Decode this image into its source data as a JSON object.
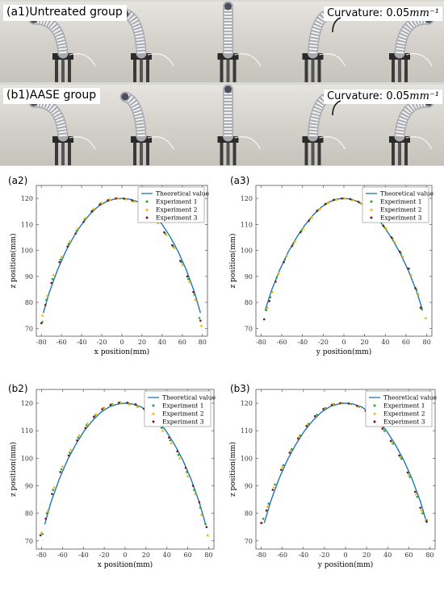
{
  "photos": {
    "rows": [
      {
        "label": "(a1)Untreated group",
        "curvature_label": "Curvature: 0.05",
        "curvature_unit": "mm⁻¹",
        "bends": [
          -0.9,
          -0.5,
          0.0,
          0.5,
          0.9
        ]
      },
      {
        "label": "(b1)AASE group",
        "curvature_label": "Curvature: 0.05",
        "curvature_unit": "mm⁻¹",
        "bends": [
          -0.9,
          -0.5,
          0.0,
          0.5,
          0.9
        ]
      }
    ]
  },
  "colors": {
    "theory": "#1f77b4",
    "exp1": "#2ca02c",
    "exp2": "#f5b400",
    "exp3": "#7a1320"
  },
  "chart_data": [
    {
      "tag": "(a2)",
      "type": "scatter",
      "xlabel": "x position(mm)",
      "ylabel": "z position(mm)",
      "xlim": [
        -85,
        85
      ],
      "ylim": [
        67,
        125
      ],
      "xticks": [
        -80,
        -60,
        -40,
        -20,
        0,
        20,
        40,
        60,
        80
      ],
      "yticks": [
        70,
        80,
        90,
        100,
        110,
        120
      ],
      "theory": {
        "name": "Theoretical value",
        "x": [
          -78,
          -72,
          -64,
          -56,
          -48,
          -40,
          -32,
          -24,
          -16,
          -8,
          0,
          8,
          16,
          24,
          32,
          40,
          48,
          56,
          64,
          72,
          78
        ],
        "y": [
          76,
          84,
          92.5,
          99.5,
          105.2,
          110,
          113.8,
          116.8,
          118.7,
          119.7,
          120,
          119.7,
          118.7,
          116.8,
          113.8,
          110,
          105.2,
          99.5,
          92.5,
          84,
          76
        ]
      },
      "series": [
        {
          "name": "Experiment 1",
          "marker": "dot",
          "x": [
            -79,
            -75,
            -69,
            -61,
            -53,
            -45,
            -37,
            -29,
            -21,
            -13,
            -5,
            3,
            11,
            19,
            27,
            35,
            43,
            51,
            59,
            66,
            72,
            77
          ],
          "y": [
            72.5,
            81,
            89,
            96.5,
            102.5,
            107.5,
            112,
            115.5,
            118,
            119.4,
            120,
            119.8,
            119,
            117.2,
            114.5,
            111,
            106.5,
            101.5,
            95.5,
            89,
            83,
            74
          ]
        },
        {
          "name": "Experiment 2",
          "marker": "triangle",
          "x": [
            -79,
            -74,
            -68,
            -60,
            -52,
            -44,
            -36,
            -28,
            -20,
            -12,
            -4,
            4,
            12,
            20,
            28,
            36,
            44,
            52,
            60,
            67,
            73,
            79
          ],
          "y": [
            75,
            82.5,
            90.5,
            97.5,
            103.5,
            108.5,
            112.5,
            116,
            118.3,
            119.6,
            120,
            119.7,
            118.8,
            117,
            114,
            110.5,
            106,
            101,
            94.5,
            88,
            81,
            71
          ]
        },
        {
          "name": "Experiment 3",
          "marker": "dot",
          "x": [
            -80,
            -76,
            -70,
            -62,
            -54,
            -46,
            -38,
            -30,
            -22,
            -14,
            -6,
            2,
            10,
            18,
            26,
            34,
            42,
            50,
            58,
            65,
            71,
            78
          ],
          "y": [
            72,
            79,
            87.5,
            95.5,
            101.5,
            106.5,
            111,
            115,
            117.7,
            119.3,
            120,
            120,
            119.3,
            117.7,
            115,
            111.5,
            107,
            102,
            96,
            90,
            84,
            73
          ]
        }
      ]
    },
    {
      "tag": "(a3)",
      "type": "scatter",
      "xlabel": "y position(mm)",
      "ylabel": "z position(mm)",
      "xlim": [
        -85,
        85
      ],
      "ylim": [
        67,
        125
      ],
      "xticks": [
        -80,
        -60,
        -40,
        -20,
        0,
        20,
        40,
        60,
        80
      ],
      "yticks": [
        70,
        80,
        90,
        100,
        110,
        120
      ],
      "theory": {
        "name": "Theoretical value",
        "x": [
          -76,
          -70,
          -62,
          -54,
          -46,
          -38,
          -30,
          -22,
          -14,
          -6,
          0,
          6,
          14,
          22,
          30,
          38,
          46,
          54,
          62,
          70,
          76
        ],
        "y": [
          77,
          84.5,
          92.5,
          99.3,
          104.8,
          109.6,
          113.5,
          116.6,
          118.7,
          119.8,
          120,
          119.8,
          118.7,
          116.6,
          113.5,
          109.6,
          104.8,
          99.3,
          92.5,
          84.5,
          77
        ]
      },
      "series": [
        {
          "name": "Experiment 1",
          "marker": "dot",
          "x": [
            -75,
            -71,
            -65,
            -57,
            -49,
            -41,
            -33,
            -25,
            -17,
            -9,
            -1,
            7,
            15,
            23,
            31,
            39,
            47,
            55,
            63,
            70,
            75
          ],
          "y": [
            77,
            82,
            89.5,
            96.5,
            102.5,
            107.5,
            112,
            115.5,
            118,
            119.5,
            120,
            119.6,
            118.4,
            116.2,
            113,
            109,
            104.5,
            99,
            93,
            85,
            77.5
          ]
        },
        {
          "name": "Experiment 2",
          "marker": "triangle",
          "x": [
            -74,
            -69,
            -63,
            -55,
            -47,
            -39,
            -31,
            -23,
            -15,
            -7,
            1,
            9,
            17,
            25,
            33,
            41,
            49,
            57,
            65,
            72,
            79
          ],
          "y": [
            78,
            84,
            91,
            98,
            103.5,
            108.5,
            112.7,
            116,
            118.3,
            119.6,
            120,
            119.4,
            118,
            115.6,
            112.3,
            108.3,
            103.3,
            97.5,
            90.5,
            83,
            74
          ]
        },
        {
          "name": "Experiment 3",
          "marker": "dot",
          "x": [
            -77,
            -72,
            -66,
            -58,
            -50,
            -42,
            -34,
            -26,
            -18,
            -10,
            -2,
            6,
            14,
            22,
            30,
            38,
            46,
            54,
            62,
            69,
            74
          ],
          "y": [
            73.5,
            80.5,
            88,
            95.5,
            101.7,
            107,
            111.3,
            115.2,
            117.8,
            119.4,
            120,
            119.8,
            118.7,
            116.6,
            113.5,
            109.5,
            105,
            99.5,
            93,
            85.5,
            78
          ]
        }
      ]
    },
    {
      "tag": "(b2)",
      "type": "scatter",
      "xlabel": "x position(mm)",
      "ylabel": "z position(mm)",
      "xlim": [
        -85,
        85
      ],
      "ylim": [
        67,
        125
      ],
      "xticks": [
        -80,
        -60,
        -40,
        -20,
        0,
        20,
        40,
        60,
        80
      ],
      "yticks": [
        70,
        80,
        90,
        100,
        110,
        120
      ],
      "theory": {
        "name": "Theoretical value",
        "x": [
          -77,
          -71,
          -63,
          -55,
          -47,
          -39,
          -31,
          -23,
          -15,
          -7,
          0,
          7,
          15,
          23,
          31,
          39,
          47,
          55,
          63,
          71,
          77
        ],
        "y": [
          76,
          84,
          92.5,
          99.5,
          105.2,
          110,
          113.8,
          116.8,
          118.7,
          119.7,
          120,
          119.7,
          118.7,
          116.8,
          113.8,
          110,
          105.2,
          99.5,
          92.5,
          84,
          76
        ]
      },
      "series": [
        {
          "name": "Experiment 1",
          "marker": "dot",
          "x": [
            -79,
            -75,
            -69,
            -61,
            -53,
            -45,
            -37,
            -29,
            -21,
            -13,
            -5,
            3,
            11,
            19,
            27,
            35,
            43,
            51,
            59,
            66,
            72,
            77
          ],
          "y": [
            72.5,
            80,
            88.5,
            96,
            102,
            107.5,
            112,
            115.5,
            118.2,
            119.6,
            120.2,
            120,
            119.2,
            117.4,
            114.6,
            111,
            106.5,
            101.2,
            95,
            88.5,
            82,
            76
          ]
        },
        {
          "name": "Experiment 2",
          "marker": "triangle",
          "x": [
            -80,
            -74,
            -68,
            -60,
            -52,
            -44,
            -36,
            -28,
            -20,
            -12,
            -4,
            4,
            12,
            20,
            28,
            36,
            44,
            52,
            60,
            67,
            73,
            79
          ],
          "y": [
            73,
            81,
            89.5,
            97,
            103,
            108.3,
            112.6,
            116,
            118.4,
            119.8,
            120.2,
            119.6,
            118.6,
            116.8,
            113.8,
            110,
            105.5,
            100,
            93.5,
            87,
            79.5,
            72
          ]
        },
        {
          "name": "Experiment 3",
          "marker": "dot",
          "x": [
            -81,
            -76,
            -70,
            -62,
            -54,
            -46,
            -38,
            -30,
            -22,
            -14,
            -6,
            2,
            10,
            18,
            26,
            34,
            42,
            50,
            58,
            65,
            71,
            78
          ],
          "y": [
            72,
            78,
            87,
            95,
            101,
            106.5,
            111,
            115,
            117.8,
            119.4,
            120.2,
            120.2,
            119.6,
            118,
            115.3,
            111.8,
            107.5,
            102.5,
            96.5,
            90,
            84,
            75
          ]
        }
      ]
    },
    {
      "tag": "(b3)",
      "type": "scatter",
      "xlabel": "y position(mm)",
      "ylabel": "z position(mm)",
      "xlim": [
        -85,
        85
      ],
      "ylim": [
        67,
        125
      ],
      "xticks": [
        -80,
        -60,
        -40,
        -20,
        0,
        20,
        40,
        60,
        80
      ],
      "yticks": [
        70,
        80,
        90,
        100,
        110,
        120
      ],
      "theory": {
        "name": "Theoretical value",
        "x": [
          -77,
          -71,
          -63,
          -55,
          -47,
          -39,
          -31,
          -23,
          -15,
          -7,
          0,
          7,
          15,
          23,
          31,
          39,
          47,
          55,
          63,
          71,
          77
        ],
        "y": [
          76.5,
          84.3,
          92.6,
          99.5,
          105.1,
          109.9,
          113.7,
          116.7,
          118.7,
          119.7,
          120,
          119.7,
          118.7,
          116.7,
          113.7,
          109.9,
          105.1,
          99.5,
          92.6,
          84.3,
          76.5
        ]
      },
      "series": [
        {
          "name": "Experiment 1",
          "marker": "dot",
          "x": [
            -78,
            -73,
            -67,
            -59,
            -51,
            -43,
            -35,
            -27,
            -19,
            -11,
            -3,
            5,
            13,
            21,
            29,
            37,
            45,
            53,
            61,
            68,
            73,
            77
          ],
          "y": [
            78,
            83.5,
            90.5,
            97.5,
            103.3,
            108.3,
            112.5,
            115.8,
            118.2,
            119.6,
            120,
            119.7,
            118.7,
            116.6,
            113.6,
            109.9,
            105.3,
            99.8,
            93.2,
            86,
            80,
            77.5
          ]
        },
        {
          "name": "Experiment 2",
          "marker": "triangle",
          "x": [
            -79,
            -74,
            -68,
            -60,
            -52,
            -44,
            -36,
            -28,
            -20,
            -12,
            -4,
            4,
            12,
            20,
            28,
            36,
            44,
            52,
            60,
            67,
            72,
            76
          ],
          "y": [
            76.5,
            82.5,
            89.5,
            96.8,
            102.8,
            108,
            112.2,
            115.6,
            118.1,
            119.5,
            120,
            119.8,
            118.9,
            116.9,
            114,
            110.4,
            105.8,
            100.5,
            94,
            87,
            81,
            77.5
          ]
        },
        {
          "name": "Experiment 3",
          "marker": "dot",
          "x": [
            -80,
            -75,
            -69,
            -61,
            -53,
            -45,
            -37,
            -29,
            -21,
            -13,
            -5,
            3,
            11,
            19,
            27,
            35,
            43,
            51,
            59,
            66,
            71,
            77
          ],
          "y": [
            76.5,
            81,
            88.5,
            95.8,
            102,
            107.2,
            111.7,
            115.3,
            117.9,
            119.4,
            120,
            119.9,
            119,
            117.2,
            114.4,
            110.8,
            106.3,
            101,
            94.8,
            87.8,
            82,
            77
          ]
        }
      ]
    }
  ]
}
